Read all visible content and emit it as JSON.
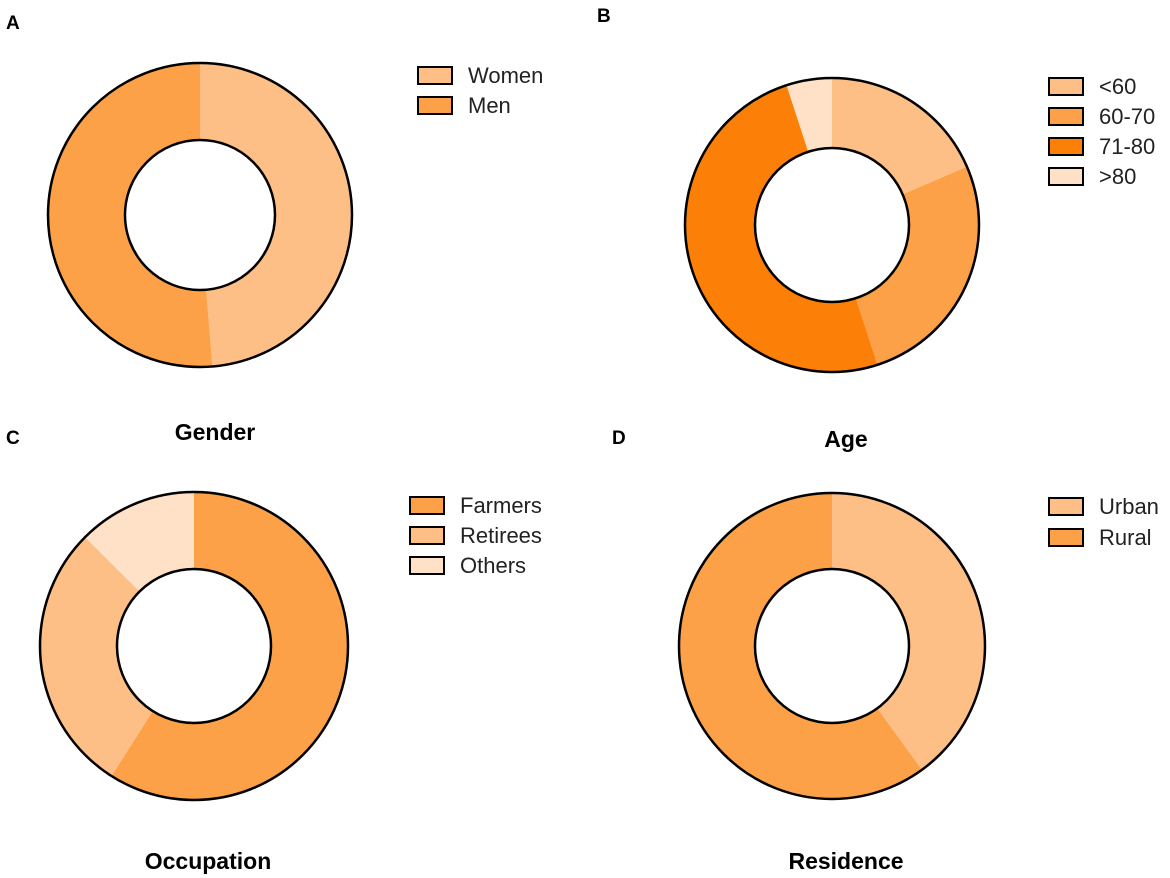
{
  "chart_data": [
    {
      "panel": "A",
      "type": "pie",
      "variant": "donut",
      "title": "Gender",
      "slices": [
        {
          "label": "Women",
          "value": 48.7,
          "color": "#FDBF85"
        },
        {
          "label": "Men",
          "value": 51.3,
          "color": "#FCA148"
        }
      ]
    },
    {
      "panel": "B",
      "type": "pie",
      "variant": "donut",
      "title": "Age",
      "slices": [
        {
          "label": "<60",
          "value": 18.5,
          "color": "#FDBF85"
        },
        {
          "label": "60-70",
          "value": 26.5,
          "color": "#FCA148"
        },
        {
          "label": "71-80",
          "value": 50.0,
          "color": "#FC8007"
        },
        {
          "label": ">80",
          "value": 5.0,
          "color": "#FEE1C7"
        }
      ]
    },
    {
      "panel": "C",
      "type": "pie",
      "variant": "donut",
      "title": "Occupation",
      "slices": [
        {
          "label": "Farmers",
          "value": 59.0,
          "color": "#FCA148"
        },
        {
          "label": "Retirees",
          "value": 28.5,
          "color": "#FDBF85"
        },
        {
          "label": "Others",
          "value": 12.5,
          "color": "#FEE1C7"
        }
      ]
    },
    {
      "panel": "D",
      "type": "pie",
      "variant": "donut",
      "title": "Residence",
      "slices": [
        {
          "label": "Urban",
          "value": 40.0,
          "color": "#FDBF85"
        },
        {
          "label": "Rural",
          "value": 60.0,
          "color": "#FCA148"
        }
      ]
    }
  ]
}
